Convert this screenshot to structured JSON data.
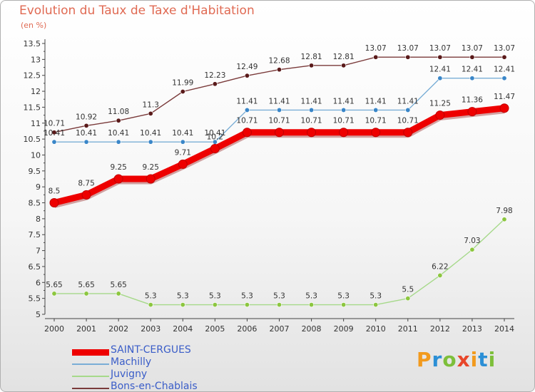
{
  "header": {
    "title": "Evolution du Taux de Taxe d'Habitation",
    "unit": "(en %)"
  },
  "logo": {
    "text": "Proxiti",
    "letters": [
      "P",
      "r",
      "o",
      "x",
      "i",
      "t",
      "i"
    ],
    "letter_colors": [
      "#f29a1d",
      "#2b8fd6",
      "#7dbf3a",
      "#e8462a",
      "#f29a1d",
      "#2b8fd6",
      "#7dbf3a"
    ]
  },
  "chart_data": {
    "type": "line",
    "title": "Evolution du Taux de Taxe d'Habitation",
    "ylabel": "(en %)",
    "xlabel": "",
    "ylim": [
      5,
      13.5
    ],
    "grid": false,
    "legend_position": "bottom-left",
    "x": [
      "2000",
      "2001",
      "2002",
      "2003",
      "2004",
      "2005",
      "2006",
      "2007",
      "2008",
      "2009",
      "2010",
      "2011",
      "2012",
      "2013",
      "2014"
    ],
    "y_ticks": [
      "5",
      "5.5",
      "6",
      "6.5",
      "7",
      "7.5",
      "8",
      "8.5",
      "9",
      "9.5",
      "10",
      "10.5",
      "11",
      "11.5",
      "12",
      "12.5",
      "13",
      "13.5"
    ],
    "series": [
      {
        "name": "SAINT-CERGUES",
        "color": "#ee0000",
        "marker_color": "#ee0000",
        "emphasis": "thick",
        "values": [
          8.5,
          8.75,
          9.25,
          9.25,
          9.71,
          10.2,
          10.71,
          10.71,
          10.71,
          10.71,
          10.71,
          10.71,
          11.25,
          11.36,
          11.47
        ],
        "labels": [
          "8.5",
          "8.75",
          "9.25",
          "9.25",
          "9.71",
          "10.2",
          "10.71",
          "10.71",
          "10.71",
          "10.71",
          "10.71",
          "10.71",
          "11.25",
          "11.36",
          "11.47"
        ]
      },
      {
        "name": "Machilly",
        "color": "#7aaed6",
        "marker_color": "#3a86c8",
        "emphasis": "thin",
        "values": [
          10.41,
          10.41,
          10.41,
          10.41,
          10.41,
          10.41,
          11.41,
          11.41,
          11.41,
          11.41,
          11.41,
          11.41,
          12.41,
          12.41,
          12.41
        ],
        "labels": [
          "10.41",
          "10.41",
          "10.41",
          "10.41",
          "10.41",
          "10.41",
          "11.41",
          "11.41",
          "11.41",
          "11.41",
          "11.41",
          "11.41",
          "12.41",
          "12.41",
          "12.41"
        ]
      },
      {
        "name": "Juvigny",
        "color": "#a6d98a",
        "marker_color": "#8cc63f",
        "emphasis": "thin",
        "values": [
          5.65,
          5.65,
          5.65,
          5.3,
          5.3,
          5.3,
          5.3,
          5.3,
          5.3,
          5.3,
          5.3,
          5.5,
          6.22,
          7.03,
          7.98
        ],
        "labels": [
          "5.65",
          "5.65",
          "5.65",
          "5.3",
          "5.3",
          "5.3",
          "5.3",
          "5.3",
          "5.3",
          "5.3",
          "5.3",
          "5.5",
          "6.22",
          "7.03",
          "7.98"
        ]
      },
      {
        "name": "Bons-en-Chablais",
        "color": "#7a3a3a",
        "marker_color": "#5a1a1a",
        "emphasis": "thin",
        "values": [
          10.71,
          10.92,
          11.08,
          11.3,
          11.99,
          12.23,
          12.49,
          12.68,
          12.81,
          12.81,
          13.07,
          13.07,
          13.07,
          13.07,
          13.07
        ],
        "labels": [
          "10.71",
          "10.92",
          "11.08",
          "11.3",
          "11.99",
          "12.23",
          "12.49",
          "12.68",
          "12.81",
          "12.81",
          "13.07",
          "13.07",
          "13.07",
          "13.07",
          "13.07"
        ]
      }
    ]
  }
}
